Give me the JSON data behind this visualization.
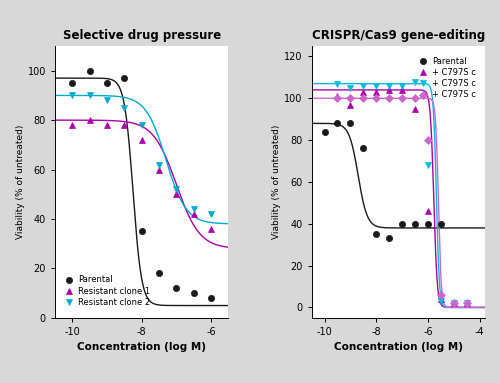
{
  "title1": "Selective drug pressure",
  "title2": "CRISPR/Cas9 gene-editing",
  "xlabel": "Concentration (log M)",
  "ylabel1": "Viability (% of untreated)",
  "background_color": "#d8d8d8",
  "panel1": {
    "xlim": [
      -10.5,
      -5.5
    ],
    "ylim": [
      0,
      110
    ],
    "xticks": [
      -10,
      -8,
      -6
    ],
    "yticks": [
      0,
      20,
      40,
      60,
      80,
      100
    ],
    "series": [
      {
        "label": "Parental",
        "color": "#1a1a1a",
        "marker": "o",
        "x": [
          -10.0,
          -9.5,
          -9.0,
          -8.5,
          -8.0,
          -7.5,
          -7.0,
          -6.5,
          -6.0
        ],
        "y": [
          95,
          100,
          95,
          97,
          35,
          18,
          12,
          10,
          8
        ],
        "ic50": -8.25,
        "hill": 3.5,
        "top": 97,
        "bottom": 5
      },
      {
        "label": "Resistant clone 1",
        "color": "#aa00aa",
        "marker": "^",
        "x": [
          -10.0,
          -9.5,
          -9.0,
          -8.5,
          -8.0,
          -7.5,
          -7.0,
          -6.5,
          -6.0
        ],
        "y": [
          78,
          80,
          78,
          78,
          72,
          60,
          50,
          42,
          36
        ],
        "ic50": -7.0,
        "hill": 1.3,
        "top": 80,
        "bottom": 28
      },
      {
        "label": "Resistant clone 2",
        "color": "#00aacc",
        "marker": "v",
        "x": [
          -10.0,
          -9.5,
          -9.0,
          -8.5,
          -8.0,
          -7.5,
          -7.0,
          -6.5,
          -6.0
        ],
        "y": [
          90,
          90,
          88,
          85,
          78,
          62,
          52,
          44,
          42
        ],
        "ic50": -7.3,
        "hill": 1.5,
        "top": 90,
        "bottom": 38
      }
    ]
  },
  "panel2": {
    "xlim": [
      -10.5,
      -3.8
    ],
    "ylim": [
      -5,
      125
    ],
    "xticks": [
      -10,
      -8,
      -6,
      -4
    ],
    "yticks": [
      0,
      20,
      40,
      60,
      80,
      100,
      120
    ],
    "series": [
      {
        "label": "Parental",
        "color": "#1a1a1a",
        "marker": "o",
        "x": [
          -10.0,
          -9.5,
          -9.0,
          -8.5,
          -8.0,
          -7.5,
          -7.0,
          -6.5,
          -6.0,
          -5.5
        ],
        "y": [
          84,
          88,
          88,
          76,
          35,
          33,
          40,
          40,
          40,
          40
        ],
        "ic50": -8.7,
        "hill": 2.5,
        "top": 88,
        "bottom": 38
      },
      {
        "label": "+ C797S c",
        "color": "#aa00aa",
        "marker": "^",
        "x": [
          -9.5,
          -9.0,
          -8.5,
          -8.0,
          -7.5,
          -7.0,
          -6.5,
          -6.0,
          -5.5,
          -5.0,
          -4.5
        ],
        "y": [
          101,
          97,
          103,
          103,
          104,
          104,
          95,
          46,
          4,
          2,
          2
        ],
        "ic50": -5.78,
        "hill": 6.5,
        "top": 104,
        "bottom": 0
      },
      {
        "label": "+ C797S c",
        "color": "#00bbdd",
        "marker": "v",
        "x": [
          -9.5,
          -9.0,
          -8.5,
          -8.0,
          -7.5,
          -7.0,
          -6.5,
          -6.0,
          -5.5,
          -5.0,
          -4.5
        ],
        "y": [
          107,
          105,
          106,
          106,
          106,
          106,
          108,
          68,
          3,
          2,
          2
        ],
        "ic50": -5.68,
        "hill": 7.5,
        "top": 107,
        "bottom": 0
      },
      {
        "label": "+ C797S c",
        "color": "#cc66cc",
        "marker": "D",
        "x": [
          -9.5,
          -9.0,
          -8.5,
          -8.0,
          -7.5,
          -7.0,
          -6.5,
          -6.0,
          -5.5,
          -5.0,
          -4.5
        ],
        "y": [
          100,
          100,
          100,
          100,
          100,
          100,
          100,
          80,
          6,
          2,
          2
        ],
        "ic50": -5.6,
        "hill": 8.0,
        "top": 100,
        "bottom": 0
      }
    ]
  }
}
